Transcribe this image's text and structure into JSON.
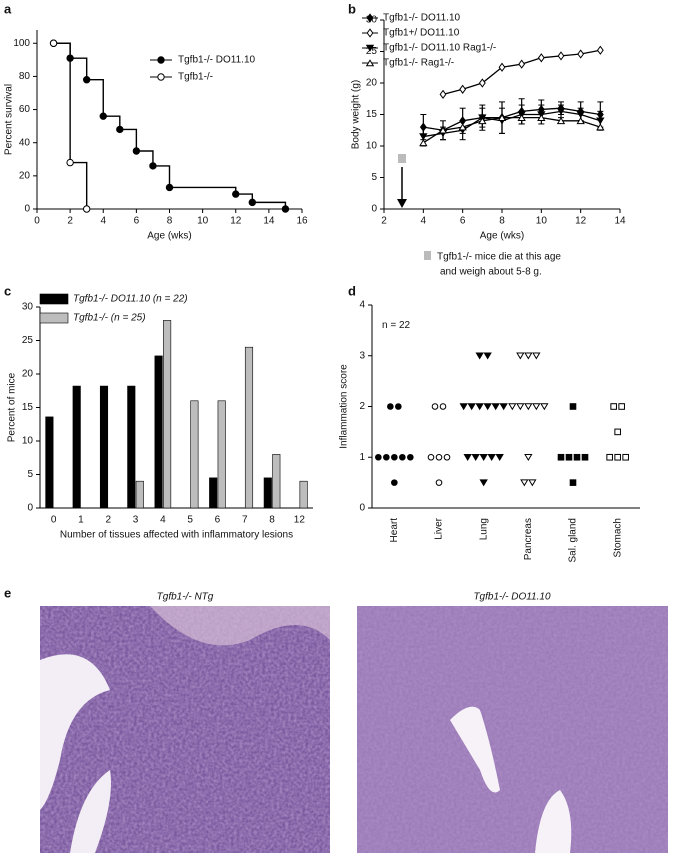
{
  "chart_data": [
    {
      "type": "line",
      "label": "a",
      "step": true,
      "xlabel": "Age (wks)",
      "ylabel": "Percent survival",
      "xlim": [
        0,
        16
      ],
      "xticks": [
        0,
        2,
        4,
        6,
        8,
        10,
        12,
        14,
        16
      ],
      "ylim": [
        0,
        108
      ],
      "yticks": [
        0,
        20,
        40,
        60,
        80,
        100
      ],
      "series": [
        {
          "name": "Tgfb1-/- DO11.10",
          "color": "#000000",
          "marker": "circle-filled",
          "x": [
            1,
            2,
            3,
            4,
            5,
            6,
            7,
            8,
            12,
            13,
            15
          ],
          "values": [
            100,
            91,
            78,
            56,
            48,
            35,
            26,
            13,
            9,
            4,
            0
          ]
        },
        {
          "name": "Tgfb1-/-",
          "color": "#000000",
          "marker": "circle-open",
          "x": [
            1,
            2,
            3
          ],
          "values": [
            100,
            28,
            0
          ]
        }
      ]
    },
    {
      "type": "errorline",
      "label": "b",
      "xlabel": "Age (wks)",
      "ylabel": "Body weight (g)",
      "xlim": [
        2,
        14
      ],
      "xticks": [
        2,
        4,
        6,
        8,
        10,
        12,
        14
      ],
      "ylim": [
        0,
        30
      ],
      "yticks": [
        0,
        5,
        10,
        15,
        20,
        25,
        30
      ],
      "annotation": [
        "Tgfb1-/- mice die at this age",
        "and weigh about 5-8 g."
      ],
      "series": [
        {
          "name": "Tgfb1-/- DO11.10",
          "color": "#000000",
          "marker": "diamond-filled",
          "x": [
            4,
            5,
            6,
            7,
            8,
            9,
            10,
            11,
            12,
            13
          ],
          "values": [
            13,
            12.5,
            14,
            14.5,
            14.5,
            15.5,
            15.8,
            16,
            15.5,
            15
          ],
          "errors": [
            2,
            1.5,
            2,
            2,
            2.5,
            2,
            1.5,
            1,
            1.5,
            2
          ]
        },
        {
          "name": "Tgfb1+/ DO11.10",
          "color": "#000000",
          "marker": "diamond-open",
          "x": [
            5,
            6,
            7,
            8,
            9,
            10,
            11,
            12,
            13
          ],
          "values": [
            18.2,
            19,
            20,
            22.5,
            23,
            24,
            24.3,
            24.6,
            25.2
          ],
          "errors": [
            0,
            0,
            0,
            0,
            0,
            0,
            0,
            0,
            0
          ]
        },
        {
          "name": "Tgfb1-/- DO11.10 Rag1-/-",
          "color": "#000000",
          "marker": "tri-down-filled",
          "x": [
            4,
            5,
            6,
            7,
            8,
            9,
            10,
            11,
            12,
            13
          ],
          "values": [
            11.5,
            12,
            12.5,
            14.5,
            14,
            15,
            15,
            15.5,
            15,
            14
          ],
          "errors": [
            1.5,
            1,
            1.5,
            1.5,
            2,
            1.5,
            1.5,
            1,
            1,
            1.5
          ]
        },
        {
          "name": "Tgfb1-/- Rag1-/-",
          "color": "#000000",
          "marker": "tri-up-open",
          "x": [
            4,
            5,
            6,
            7,
            8,
            9,
            10,
            11,
            12,
            13
          ],
          "values": [
            10.5,
            12.5,
            13,
            14,
            14.5,
            14.5,
            14.5,
            14,
            14,
            13
          ],
          "errors": [
            0,
            0,
            0,
            0,
            0,
            0,
            0,
            0,
            0,
            0
          ]
        }
      ]
    },
    {
      "type": "bar",
      "label": "c",
      "xlabel": "Number of tissues affected with inflammatory lesions",
      "ylabel": "Percent of mice",
      "categories": [
        "0",
        "1",
        "2",
        "3",
        "4",
        "5",
        "6",
        "7",
        "8",
        "12"
      ],
      "ylim": [
        0,
        30
      ],
      "yticks": [
        0,
        5,
        10,
        15,
        20,
        25,
        30
      ],
      "series": [
        {
          "name": "Tgfb1-/- DO11.10 (n = 22)",
          "color": "#000000",
          "values": [
            13.6,
            18.2,
            18.2,
            18.2,
            22.7,
            0,
            4.5,
            0,
            4.5,
            0
          ]
        },
        {
          "name": "Tgfb1-/- (n = 25)",
          "color": "#bdbdbd",
          "values": [
            0,
            0,
            0,
            4,
            28,
            16,
            16,
            24,
            8,
            4
          ]
        }
      ]
    },
    {
      "type": "dot",
      "label": "d",
      "ylabel": "Inflammation score",
      "note": "n = 22",
      "categories": [
        "Heart",
        "Liver",
        "Lung",
        "Pancreas",
        "Sal. gland",
        "Stomach"
      ],
      "markers": [
        "circle-filled",
        "circle-open",
        "tri-down-filled",
        "tri-down-open",
        "square-filled",
        "square-open"
      ],
      "ylim": [
        0,
        4
      ],
      "yticks": [
        0,
        1,
        2,
        3,
        4
      ],
      "values": [
        [
          2,
          2,
          1,
          1,
          1,
          1,
          1,
          0.5
        ],
        [
          2,
          2,
          1,
          1,
          1,
          0.5
        ],
        [
          3,
          3,
          2,
          2,
          2,
          2,
          2,
          2,
          1,
          1,
          1,
          1,
          1,
          0.5
        ],
        [
          3,
          3,
          3,
          2,
          2,
          2,
          2,
          2,
          1,
          0.5,
          0.5
        ],
        [
          2,
          1,
          1,
          1,
          1,
          0.5
        ],
        [
          2,
          2,
          1.5,
          1,
          1,
          1
        ]
      ]
    }
  ],
  "panel_e": {
    "label": "e",
    "images": [
      {
        "title": "Tgfb1-/- NTg"
      },
      {
        "title": "Tgfb1-/- DO11.10"
      }
    ]
  }
}
